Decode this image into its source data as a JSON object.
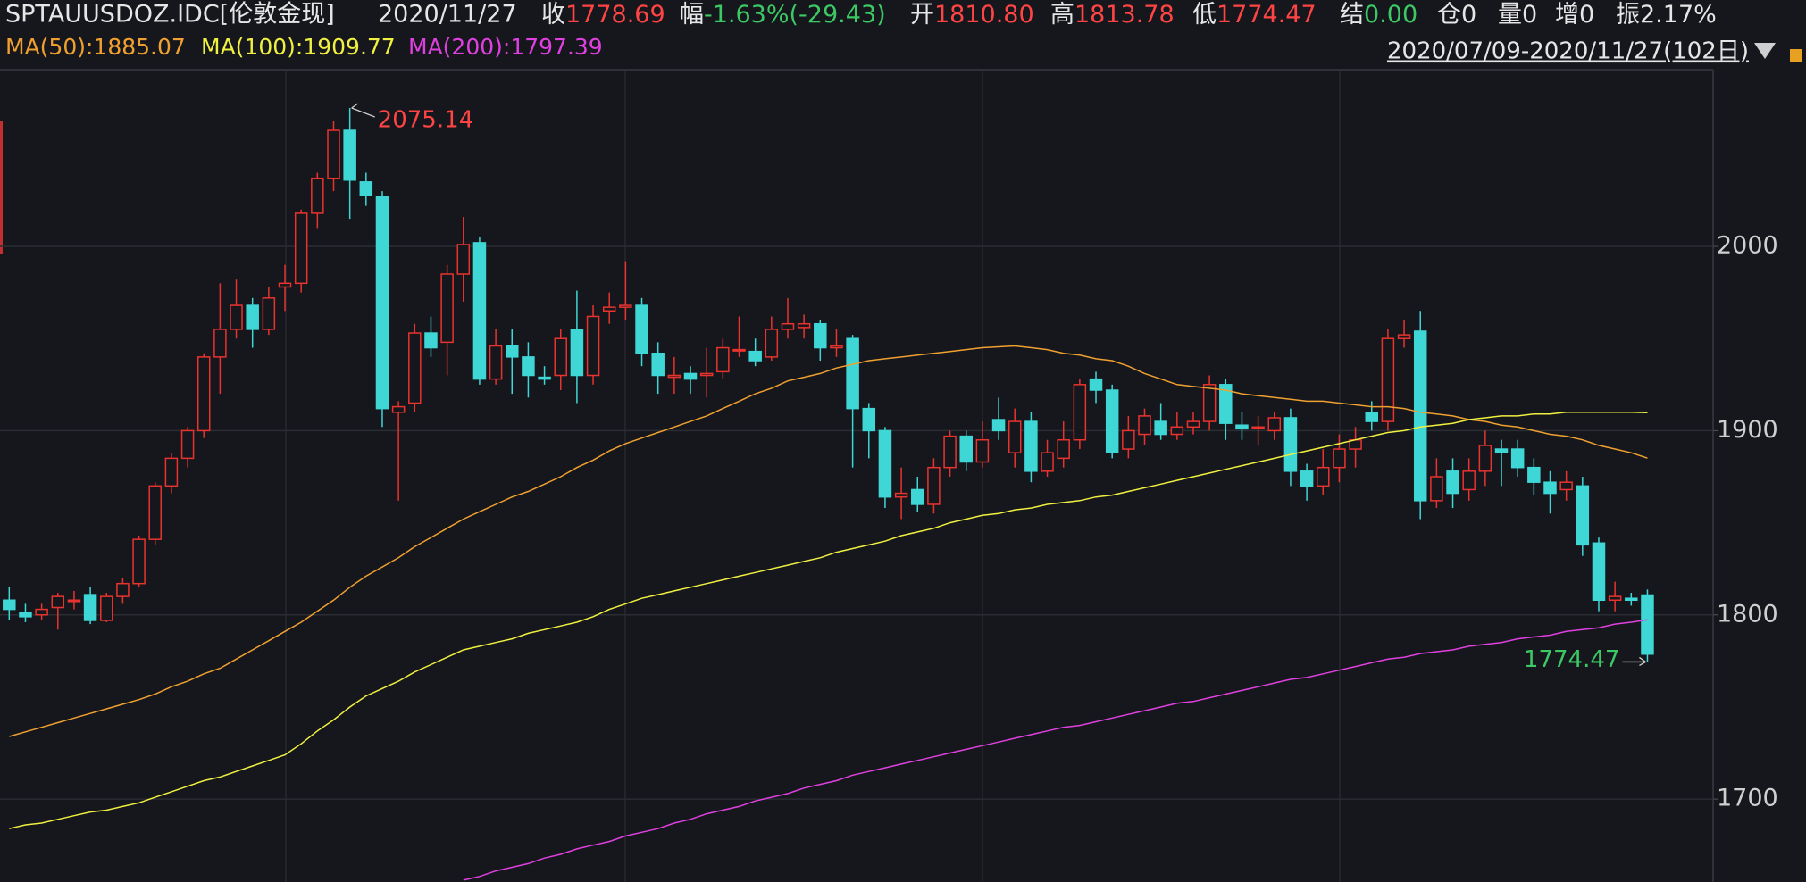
{
  "header": {
    "symbol": "SPTAUUSDOZ.IDC[伦敦金现]",
    "date": "2020/11/27",
    "fields": [
      {
        "label": "收",
        "value": "1778.69",
        "color": "#ff4444"
      },
      {
        "label": "幅",
        "value": "-1.63%(-29.43)",
        "color": "#3cc864"
      },
      {
        "label": "开",
        "value": "1810.80",
        "color": "#ff4444"
      },
      {
        "label": "高",
        "value": "1813.78",
        "color": "#ff4444"
      },
      {
        "label": "低",
        "value": "1774.47",
        "color": "#ff4444"
      },
      {
        "label": "结",
        "value": "0.00",
        "color": "#3cc864"
      },
      {
        "label": "仓",
        "value": "0",
        "color": "#e6e6e6"
      },
      {
        "label": "量",
        "value": "0",
        "color": "#e6e6e6"
      },
      {
        "label": "增",
        "value": "0",
        "color": "#e6e6e6"
      },
      {
        "label": "振",
        "value": "2.17%",
        "color": "#e6e6e6"
      }
    ],
    "range": "2020/07/09-2020/11/27(102日)"
  },
  "chart_data": {
    "type": "candlestick",
    "up_color": "#e8332f",
    "down_color": "#3fd6d6",
    "ylim": [
      1655,
      2095
    ],
    "yticks": [
      1700,
      1800,
      1900,
      2000
    ],
    "grid": true,
    "open": [
      1808,
      1801,
      1800,
      1804,
      1808,
      1811,
      1797,
      1810,
      1817,
      1841,
      1870,
      1885,
      1900,
      1940,
      1955,
      1968,
      1955,
      1978,
      1980,
      2018,
      2037,
      2063,
      2035,
      2027,
      1910,
      1915,
      1953,
      1948,
      1985,
      2002,
      1928,
      1946,
      1940,
      1929,
      1930,
      1955,
      1930,
      1965,
      1967,
      1968,
      1942,
      1929,
      1931,
      1930,
      1932,
      1944,
      1943,
      1940,
      1955,
      1956,
      1958,
      1945,
      1950,
      1912,
      1900,
      1864,
      1868,
      1860,
      1880,
      1897,
      1883,
      1906,
      1888,
      1905,
      1878,
      1885,
      1895,
      1928,
      1922,
      1890,
      1898,
      1905,
      1898,
      1902,
      1905,
      1925,
      1903,
      1902,
      1900,
      1907,
      1878,
      1870,
      1880,
      1890,
      1910,
      1905,
      1950,
      1954,
      1862,
      1878,
      1868,
      1878,
      1890,
      1890,
      1880,
      1872,
      1868,
      1870,
      1839,
      1808,
      1809,
      1810.8
    ],
    "high": [
      1815,
      1806,
      1806,
      1812,
      1813,
      1815,
      1812,
      1820,
      1843,
      1872,
      1888,
      1902,
      1942,
      1980,
      1982,
      1972,
      1978,
      1990,
      2020,
      2040,
      2068,
      2075.14,
      2040,
      2030,
      1916,
      1958,
      1962,
      1990,
      2016,
      2005,
      1955,
      1955,
      1948,
      1935,
      1955,
      1976,
      1968,
      1975,
      1992,
      1972,
      1948,
      1940,
      1935,
      1945,
      1950,
      1962,
      1950,
      1962,
      1972,
      1963,
      1960,
      1955,
      1952,
      1915,
      1902,
      1880,
      1875,
      1885,
      1900,
      1900,
      1905,
      1918,
      1912,
      1910,
      1895,
      1905,
      1928,
      1932,
      1925,
      1908,
      1912,
      1915,
      1910,
      1910,
      1930,
      1928,
      1910,
      1908,
      1910,
      1912,
      1882,
      1890,
      1898,
      1902,
      1916,
      1955,
      1960,
      1965,
      1885,
      1885,
      1885,
      1900,
      1895,
      1895,
      1885,
      1878,
      1878,
      1875,
      1842,
      1818,
      1812,
      1813.78
    ],
    "low": [
      1797,
      1796,
      1797,
      1792,
      1803,
      1795,
      1796,
      1806,
      1815,
      1838,
      1866,
      1880,
      1896,
      1920,
      1950,
      1945,
      1952,
      1965,
      1975,
      2010,
      2030,
      2015,
      2022,
      1902,
      1862,
      1910,
      1940,
      1930,
      1970,
      1925,
      1925,
      1920,
      1918,
      1925,
      1922,
      1915,
      1925,
      1958,
      1960,
      1935,
      1920,
      1920,
      1920,
      1918,
      1928,
      1940,
      1935,
      1938,
      1950,
      1950,
      1938,
      1940,
      1880,
      1885,
      1858,
      1852,
      1856,
      1855,
      1875,
      1878,
      1880,
      1895,
      1880,
      1872,
      1875,
      1880,
      1890,
      1915,
      1885,
      1885,
      1892,
      1895,
      1895,
      1898,
      1900,
      1895,
      1895,
      1892,
      1895,
      1870,
      1862,
      1865,
      1872,
      1880,
      1900,
      1900,
      1945,
      1852,
      1858,
      1858,
      1862,
      1870,
      1870,
      1875,
      1865,
      1855,
      1862,
      1832,
      1802,
      1802,
      1805,
      1774.47
    ],
    "close": [
      1803,
      1799,
      1803,
      1810,
      1808,
      1797,
      1810,
      1817,
      1841,
      1870,
      1885,
      1900,
      1940,
      1955,
      1968,
      1955,
      1972,
      1980,
      2018,
      2037,
      2063,
      2036,
      2028,
      1912,
      1913,
      1953,
      1945,
      1985,
      2001,
      1928,
      1946,
      1940,
      1930,
      1928,
      1950,
      1930,
      1962,
      1967,
      1968,
      1942,
      1930,
      1930,
      1928,
      1931,
      1945,
      1944,
      1938,
      1955,
      1958,
      1958,
      1945,
      1946,
      1912,
      1900,
      1864,
      1866,
      1860,
      1880,
      1897,
      1883,
      1895,
      1900,
      1905,
      1878,
      1888,
      1895,
      1925,
      1922,
      1888,
      1900,
      1908,
      1898,
      1902,
      1905,
      1925,
      1904,
      1901,
      1902,
      1907,
      1878,
      1870,
      1880,
      1890,
      1895,
      1905,
      1950,
      1952,
      1862,
      1875,
      1866,
      1878,
      1892,
      1888,
      1880,
      1872,
      1866,
      1872,
      1838,
      1808,
      1810,
      1808,
      1778.69
    ],
    "series": [
      {
        "name": "MA(50):1885.07",
        "color": "#f0a030",
        "values": [
          1734,
          1736.5,
          1739,
          1741.5,
          1744,
          1746.5,
          1749,
          1751.5,
          1754,
          1757,
          1761,
          1764,
          1768,
          1771,
          1776,
          1781,
          1786,
          1791,
          1796,
          1802,
          1808,
          1815,
          1821,
          1826,
          1831,
          1837,
          1842,
          1847,
          1852,
          1856,
          1860,
          1864,
          1867,
          1871,
          1875,
          1880,
          1884,
          1889,
          1893,
          1896,
          1899,
          1902,
          1905,
          1908,
          1912,
          1916,
          1920,
          1923,
          1927,
          1929,
          1931,
          1934,
          1936,
          1938,
          1939,
          1940,
          1941,
          1942,
          1943,
          1944,
          1945,
          1945.5,
          1946,
          1945,
          1944,
          1942,
          1941,
          1939,
          1938,
          1935,
          1931,
          1928,
          1925,
          1924,
          1923,
          1922,
          1920,
          1919,
          1918,
          1917,
          1916,
          1916,
          1915,
          1914,
          1913,
          1913,
          1912,
          1910,
          1909,
          1908,
          1906,
          1905,
          1903,
          1902,
          1900,
          1898,
          1897,
          1895,
          1892,
          1890,
          1888,
          1885.07
        ]
      },
      {
        "name": "MA(100):1909.77",
        "color": "#f0f040",
        "values": [
          1684,
          1686,
          1687,
          1689,
          1691,
          1693,
          1694,
          1696,
          1698,
          1701,
          1704,
          1707,
          1710,
          1712,
          1715,
          1718,
          1721,
          1724,
          1730,
          1737,
          1743,
          1750,
          1756,
          1760,
          1764,
          1769,
          1773,
          1777,
          1781,
          1783,
          1785,
          1787,
          1790,
          1792,
          1794,
          1796,
          1799,
          1803,
          1806,
          1809,
          1811,
          1813,
          1815,
          1817,
          1819,
          1821,
          1823,
          1825,
          1827,
          1829,
          1831,
          1834,
          1836,
          1838,
          1840,
          1843,
          1845,
          1847,
          1850,
          1852,
          1854,
          1855,
          1857,
          1858,
          1860,
          1861,
          1862,
          1864,
          1865,
          1867,
          1869,
          1871,
          1873,
          1875,
          1877,
          1879,
          1881,
          1883,
          1885,
          1887,
          1889,
          1891,
          1893,
          1895,
          1897,
          1899,
          1900,
          1902,
          1903,
          1904,
          1906,
          1907,
          1908,
          1908,
          1909,
          1909,
          1910,
          1910,
          1910,
          1910,
          1910,
          1909.77
        ]
      },
      {
        "name": "MA(200):1797.39",
        "color": "#e040e0",
        "values": [
          null,
          null,
          null,
          null,
          null,
          null,
          null,
          null,
          null,
          null,
          null,
          null,
          null,
          null,
          null,
          null,
          null,
          null,
          null,
          null,
          null,
          null,
          null,
          null,
          null,
          null,
          null,
          null,
          1656,
          1658,
          1661,
          1663,
          1665,
          1668,
          1670,
          1673,
          1675,
          1677,
          1680,
          1682,
          1684,
          1687,
          1689,
          1692,
          1694,
          1696,
          1699,
          1701,
          1703,
          1706,
          1708,
          1710,
          1713,
          1715,
          1717,
          1719,
          1721,
          1723,
          1725,
          1727,
          1729,
          1731,
          1733,
          1735,
          1737,
          1739,
          1740,
          1742,
          1744,
          1746,
          1748,
          1750,
          1752,
          1753,
          1755,
          1757,
          1759,
          1761,
          1763,
          1765,
          1766,
          1768,
          1770,
          1772,
          1774,
          1776,
          1777,
          1779,
          1780,
          1781,
          1783,
          1784,
          1785,
          1787,
          1788,
          1789,
          1791,
          1792,
          1793,
          1795,
          1796,
          1797.39
        ]
      }
    ],
    "annotations": [
      {
        "text_path": "chart_data.high.21",
        "color": "#ff4444"
      },
      {
        "text_path": "chart_data.low.101",
        "color": "#3cc864"
      }
    ]
  }
}
